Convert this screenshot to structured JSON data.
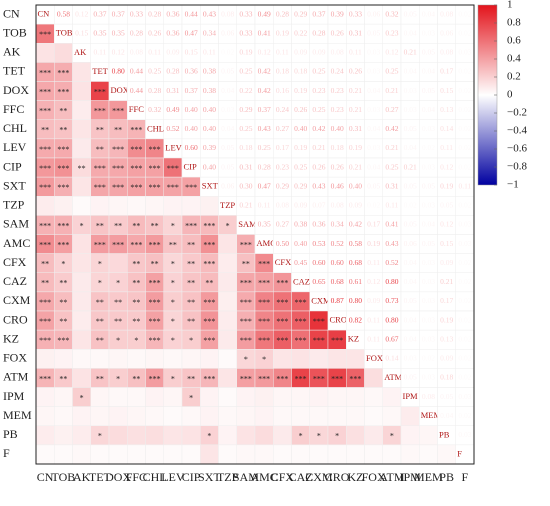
{
  "chart_data": {
    "type": "corrplot",
    "labels": [
      "CN",
      "TOB",
      "AK",
      "TET",
      "DOX",
      "FFC",
      "CHL",
      "LEV",
      "CIP",
      "SXT",
      "TZP",
      "SAM",
      "AMC",
      "CFX",
      "CAZ",
      "CXM",
      "CRO",
      "KZ",
      "FOX",
      "ATM",
      "IPM",
      "MEM",
      "PB",
      "F"
    ],
    "values": [
      [
        0.58,
        0.12,
        0.37,
        0.37,
        0.33,
        0.28,
        0.36,
        0.44,
        0.43,
        0.08,
        0.33,
        0.49,
        0.28,
        0.29,
        0.37,
        0.39,
        0.33,
        0.06,
        0.32,
        0.05,
        0.04,
        0.08,
        0.02
      ],
      [
        0.15,
        0.35,
        0.35,
        0.28,
        0.26,
        0.36,
        0.47,
        0.34,
        0.06,
        0.33,
        0.41,
        0.19,
        0.22,
        0.28,
        0.26,
        0.31,
        0.05,
        0.23,
        0.04,
        0.03,
        0.06,
        0.02
      ],
      [
        0.11,
        0.12,
        0.08,
        0.11,
        0.09,
        0.15,
        0.11,
        0.02,
        0.19,
        0.12,
        0.11,
        0.09,
        0.09,
        0.08,
        0.11,
        0.03,
        0.12,
        0.21,
        0.05,
        0.08,
        0.03
      ],
      [
        0.8,
        0.44,
        0.25,
        0.28,
        0.36,
        0.38,
        0.05,
        0.25,
        0.42,
        0.18,
        0.18,
        0.25,
        0.24,
        0.26,
        0.03,
        0.25,
        0.04,
        0.04,
        0.17,
        0.02
      ],
      [
        0.44,
        0.28,
        0.31,
        0.37,
        0.38,
        0.04,
        0.22,
        0.42,
        0.16,
        0.19,
        0.23,
        0.23,
        0.21,
        0.04,
        0.21,
        0.03,
        0.05,
        0.15,
        0.02
      ],
      [
        0.32,
        0.49,
        0.4,
        0.4,
        0.03,
        0.29,
        0.37,
        0.24,
        0.26,
        0.25,
        0.23,
        0.21,
        0.03,
        0.27,
        0.03,
        0.04,
        0.13,
        0.02
      ],
      [
        0.52,
        0.4,
        0.4,
        0.04,
        0.25,
        0.43,
        0.27,
        0.4,
        0.42,
        0.4,
        0.31,
        0.04,
        0.42,
        0.05,
        0.03,
        0.14,
        0.02
      ],
      [
        0.6,
        0.39,
        0.05,
        0.18,
        0.25,
        0.17,
        0.19,
        0.21,
        0.18,
        0.19,
        0.03,
        0.21,
        0.04,
        0.02,
        0.11,
        0.02
      ],
      [
        0.4,
        0.05,
        0.31,
        0.28,
        0.23,
        0.25,
        0.26,
        0.26,
        0.21,
        0.04,
        0.25,
        0.21,
        0.03,
        0.12,
        0.02
      ],
      [
        0.06,
        0.3,
        0.47,
        0.29,
        0.29,
        0.43,
        0.46,
        0.4,
        0.05,
        0.31,
        0.05,
        0.05,
        0.19,
        0.11
      ],
      [
        0.21,
        0.11,
        0.08,
        0.09,
        0.07,
        0.08,
        0.09,
        0.02,
        0.11,
        0.02,
        0.03,
        0.05,
        0.02
      ],
      [
        0.35,
        0.27,
        0.38,
        0.36,
        0.34,
        0.42,
        0.17,
        0.41,
        0.05,
        0.04,
        0.12,
        0.03
      ],
      [
        0.5,
        0.4,
        0.53,
        0.52,
        0.58,
        0.19,
        0.43,
        0.06,
        0.05,
        0.15,
        0.03
      ],
      [
        0.45,
        0.6,
        0.6,
        0.68,
        0.11,
        0.52,
        0.04,
        0.03,
        0.09,
        0.02
      ],
      [
        0.65,
        0.68,
        0.61,
        0.12,
        0.8,
        0.04,
        0.03,
        0.21,
        0.02
      ],
      [
        0.87,
        0.8,
        0.09,
        0.73,
        0.05,
        0.03,
        0.17,
        0.02
      ],
      [
        0.82,
        0.11,
        0.8,
        0.04,
        0.03,
        0.19,
        0.02
      ],
      [
        0.11,
        0.67,
        0.04,
        0.03,
        0.13,
        0.02
      ],
      [
        0.14,
        0.03,
        0.02,
        0.09,
        0.02
      ],
      [
        0.05,
        0.03,
        0.18,
        0.02
      ],
      [
        0.08,
        0.05,
        0.03
      ],
      [
        0.04,
        0.02
      ],
      [
        0.03
      ]
    ],
    "value_labels": [
      [
        null,
        null,
        null,
        null,
        null,
        null,
        null,
        null,
        null,
        null,
        null,
        null,
        null,
        null,
        null,
        null,
        null,
        null,
        null,
        null,
        null,
        null,
        null
      ],
      [
        null,
        null,
        null,
        null,
        null,
        null,
        null,
        null,
        null,
        null,
        null,
        null,
        null,
        null,
        null,
        null,
        null,
        null,
        null,
        null,
        null,
        null
      ],
      [
        null,
        null,
        null,
        null,
        null,
        null,
        null,
        null,
        null,
        null,
        null,
        null,
        null,
        null,
        null,
        null,
        null,
        null,
        null,
        null,
        null
      ],
      [
        "0.80",
        null,
        null,
        null,
        null,
        null,
        null,
        null,
        null,
        null,
        null,
        null,
        null,
        null,
        null,
        null,
        null,
        null,
        null,
        null
      ],
      [
        null,
        null,
        null,
        null,
        null,
        null,
        null,
        null,
        null,
        null,
        null,
        null,
        null,
        null,
        null,
        null,
        null,
        null,
        null
      ],
      [
        null,
        null,
        "0.40",
        "0.40",
        null,
        null,
        null,
        null,
        null,
        null,
        null,
        null,
        null,
        null,
        null,
        null,
        null,
        null
      ],
      [
        null,
        "0.40",
        "0.40",
        null,
        null,
        null,
        null,
        "0.40",
        null,
        "0.40",
        null,
        null,
        null,
        null,
        null,
        null,
        null
      ],
      [
        "0.60",
        null,
        null,
        null,
        null,
        null,
        null,
        null,
        null,
        null,
        null,
        null,
        null,
        null,
        null,
        null
      ],
      [
        "0.40",
        null,
        null,
        null,
        null,
        null,
        null,
        null,
        null,
        null,
        null,
        null,
        null,
        null,
        null
      ],
      [
        null,
        "0.30",
        null,
        null,
        null,
        null,
        null,
        "0.40",
        null,
        null,
        null,
        null,
        null,
        null
      ],
      [
        null,
        null,
        null,
        null,
        null,
        null,
        null,
        null,
        null,
        null,
        null,
        null,
        null
      ],
      [
        null,
        null,
        null,
        null,
        null,
        null,
        null,
        null,
        null,
        null,
        null,
        null
      ],
      [
        "0.50",
        "0.40",
        null,
        null,
        null,
        null,
        null,
        null,
        null,
        null,
        null
      ],
      [
        null,
        "0.60",
        "0.60",
        null,
        null,
        null,
        null,
        null,
        null,
        null
      ],
      [
        null,
        null,
        null,
        null,
        "0.80",
        null,
        null,
        null,
        null
      ],
      [
        null,
        "0.80",
        null,
        null,
        null,
        null,
        null,
        null
      ],
      [
        null,
        null,
        "0.80",
        null,
        null,
        null,
        null
      ],
      [
        null,
        null,
        null,
        null,
        null,
        null
      ],
      [
        null,
        null,
        null,
        null,
        null
      ],
      [
        null,
        null,
        null,
        null
      ],
      [
        null,
        null,
        null
      ],
      [
        null,
        null
      ],
      [
        null
      ]
    ],
    "stars": [
      [],
      [
        "***"
      ],
      [
        null,
        null
      ],
      [
        "***",
        "***",
        null
      ],
      [
        "***",
        "***",
        null,
        "***"
      ],
      [
        "***",
        "**",
        null,
        "***",
        "***"
      ],
      [
        "**",
        "**",
        null,
        "**",
        "**",
        "***"
      ],
      [
        "***",
        "***",
        null,
        "**",
        "***",
        "***",
        "***"
      ],
      [
        "***",
        "***",
        "**",
        "***",
        "***",
        "***",
        "***",
        "***"
      ],
      [
        "***",
        "***",
        null,
        "***",
        "***",
        "***",
        "***",
        "***",
        "***"
      ],
      [
        null,
        null,
        null,
        null,
        null,
        null,
        null,
        null,
        null,
        null
      ],
      [
        "***",
        "***",
        "*",
        "**",
        "**",
        "**",
        "**",
        "*",
        "***",
        "***",
        "*"
      ],
      [
        "***",
        "***",
        null,
        "***",
        "***",
        "***",
        "***",
        "**",
        "**",
        "***",
        null,
        "***"
      ],
      [
        "**",
        "*",
        null,
        "*",
        null,
        "**",
        "**",
        "*",
        "**",
        "***",
        null,
        "**",
        "***"
      ],
      [
        "**",
        "**",
        null,
        "*",
        "*",
        "**",
        "***",
        "*",
        "**",
        "**",
        null,
        "***",
        "***",
        "***"
      ],
      [
        "***",
        "**",
        null,
        "**",
        "**",
        "**",
        "***",
        "*",
        "**",
        "***",
        null,
        "***",
        "***",
        "***",
        "***"
      ],
      [
        "***",
        "**",
        null,
        "**",
        "**",
        "**",
        "***",
        "*",
        "**",
        "***",
        null,
        "***",
        "***",
        "***",
        "***",
        "***"
      ],
      [
        "***",
        "***",
        null,
        "**",
        "*",
        "*",
        "***",
        "*",
        "*",
        "***",
        null,
        "***",
        "***",
        "***",
        "***",
        "***",
        "***"
      ],
      [
        null,
        null,
        null,
        null,
        null,
        null,
        null,
        null,
        null,
        null,
        null,
        "*",
        "*",
        null,
        null,
        null,
        null,
        null
      ],
      [
        "***",
        "**",
        null,
        "**",
        "*",
        "**",
        "***",
        "*",
        "**",
        "***",
        null,
        "***",
        "***",
        "***",
        "***",
        "***",
        "***",
        "***",
        null
      ],
      [
        null,
        null,
        "*",
        null,
        null,
        null,
        null,
        null,
        "*",
        null,
        null,
        null,
        null,
        null,
        null,
        null,
        null,
        null,
        null,
        null
      ],
      [
        null,
        null,
        null,
        null,
        null,
        null,
        null,
        null,
        null,
        null,
        null,
        null,
        null,
        null,
        null,
        null,
        null,
        null,
        null,
        null,
        null
      ],
      [
        null,
        null,
        null,
        "*",
        null,
        null,
        null,
        null,
        null,
        "*",
        null,
        null,
        null,
        null,
        "*",
        "*",
        "*",
        null,
        null,
        "*",
        null,
        null
      ],
      [
        null,
        null,
        null,
        null,
        null,
        null,
        null,
        null,
        null,
        null,
        null,
        null,
        null,
        null,
        null,
        null,
        null,
        null,
        null,
        null,
        null,
        null,
        null
      ]
    ],
    "clim": [
      -1,
      1
    ],
    "cticks": [
      1,
      0.8,
      0.6,
      0.4,
      0.2,
      0,
      {
        "value": -0.2,
        "label": "−0.2"
      },
      {
        "value": -0.4,
        "label": "−0.4"
      },
      {
        "value": -0.6,
        "label": "−0.6"
      },
      {
        "value": -0.8,
        "label": "−0.8"
      },
      {
        "value": -1,
        "label": "−1"
      }
    ],
    "colors": {
      "positive": "#e3141c",
      "negative": "#0000a0",
      "zero": "#ffffff"
    }
  }
}
